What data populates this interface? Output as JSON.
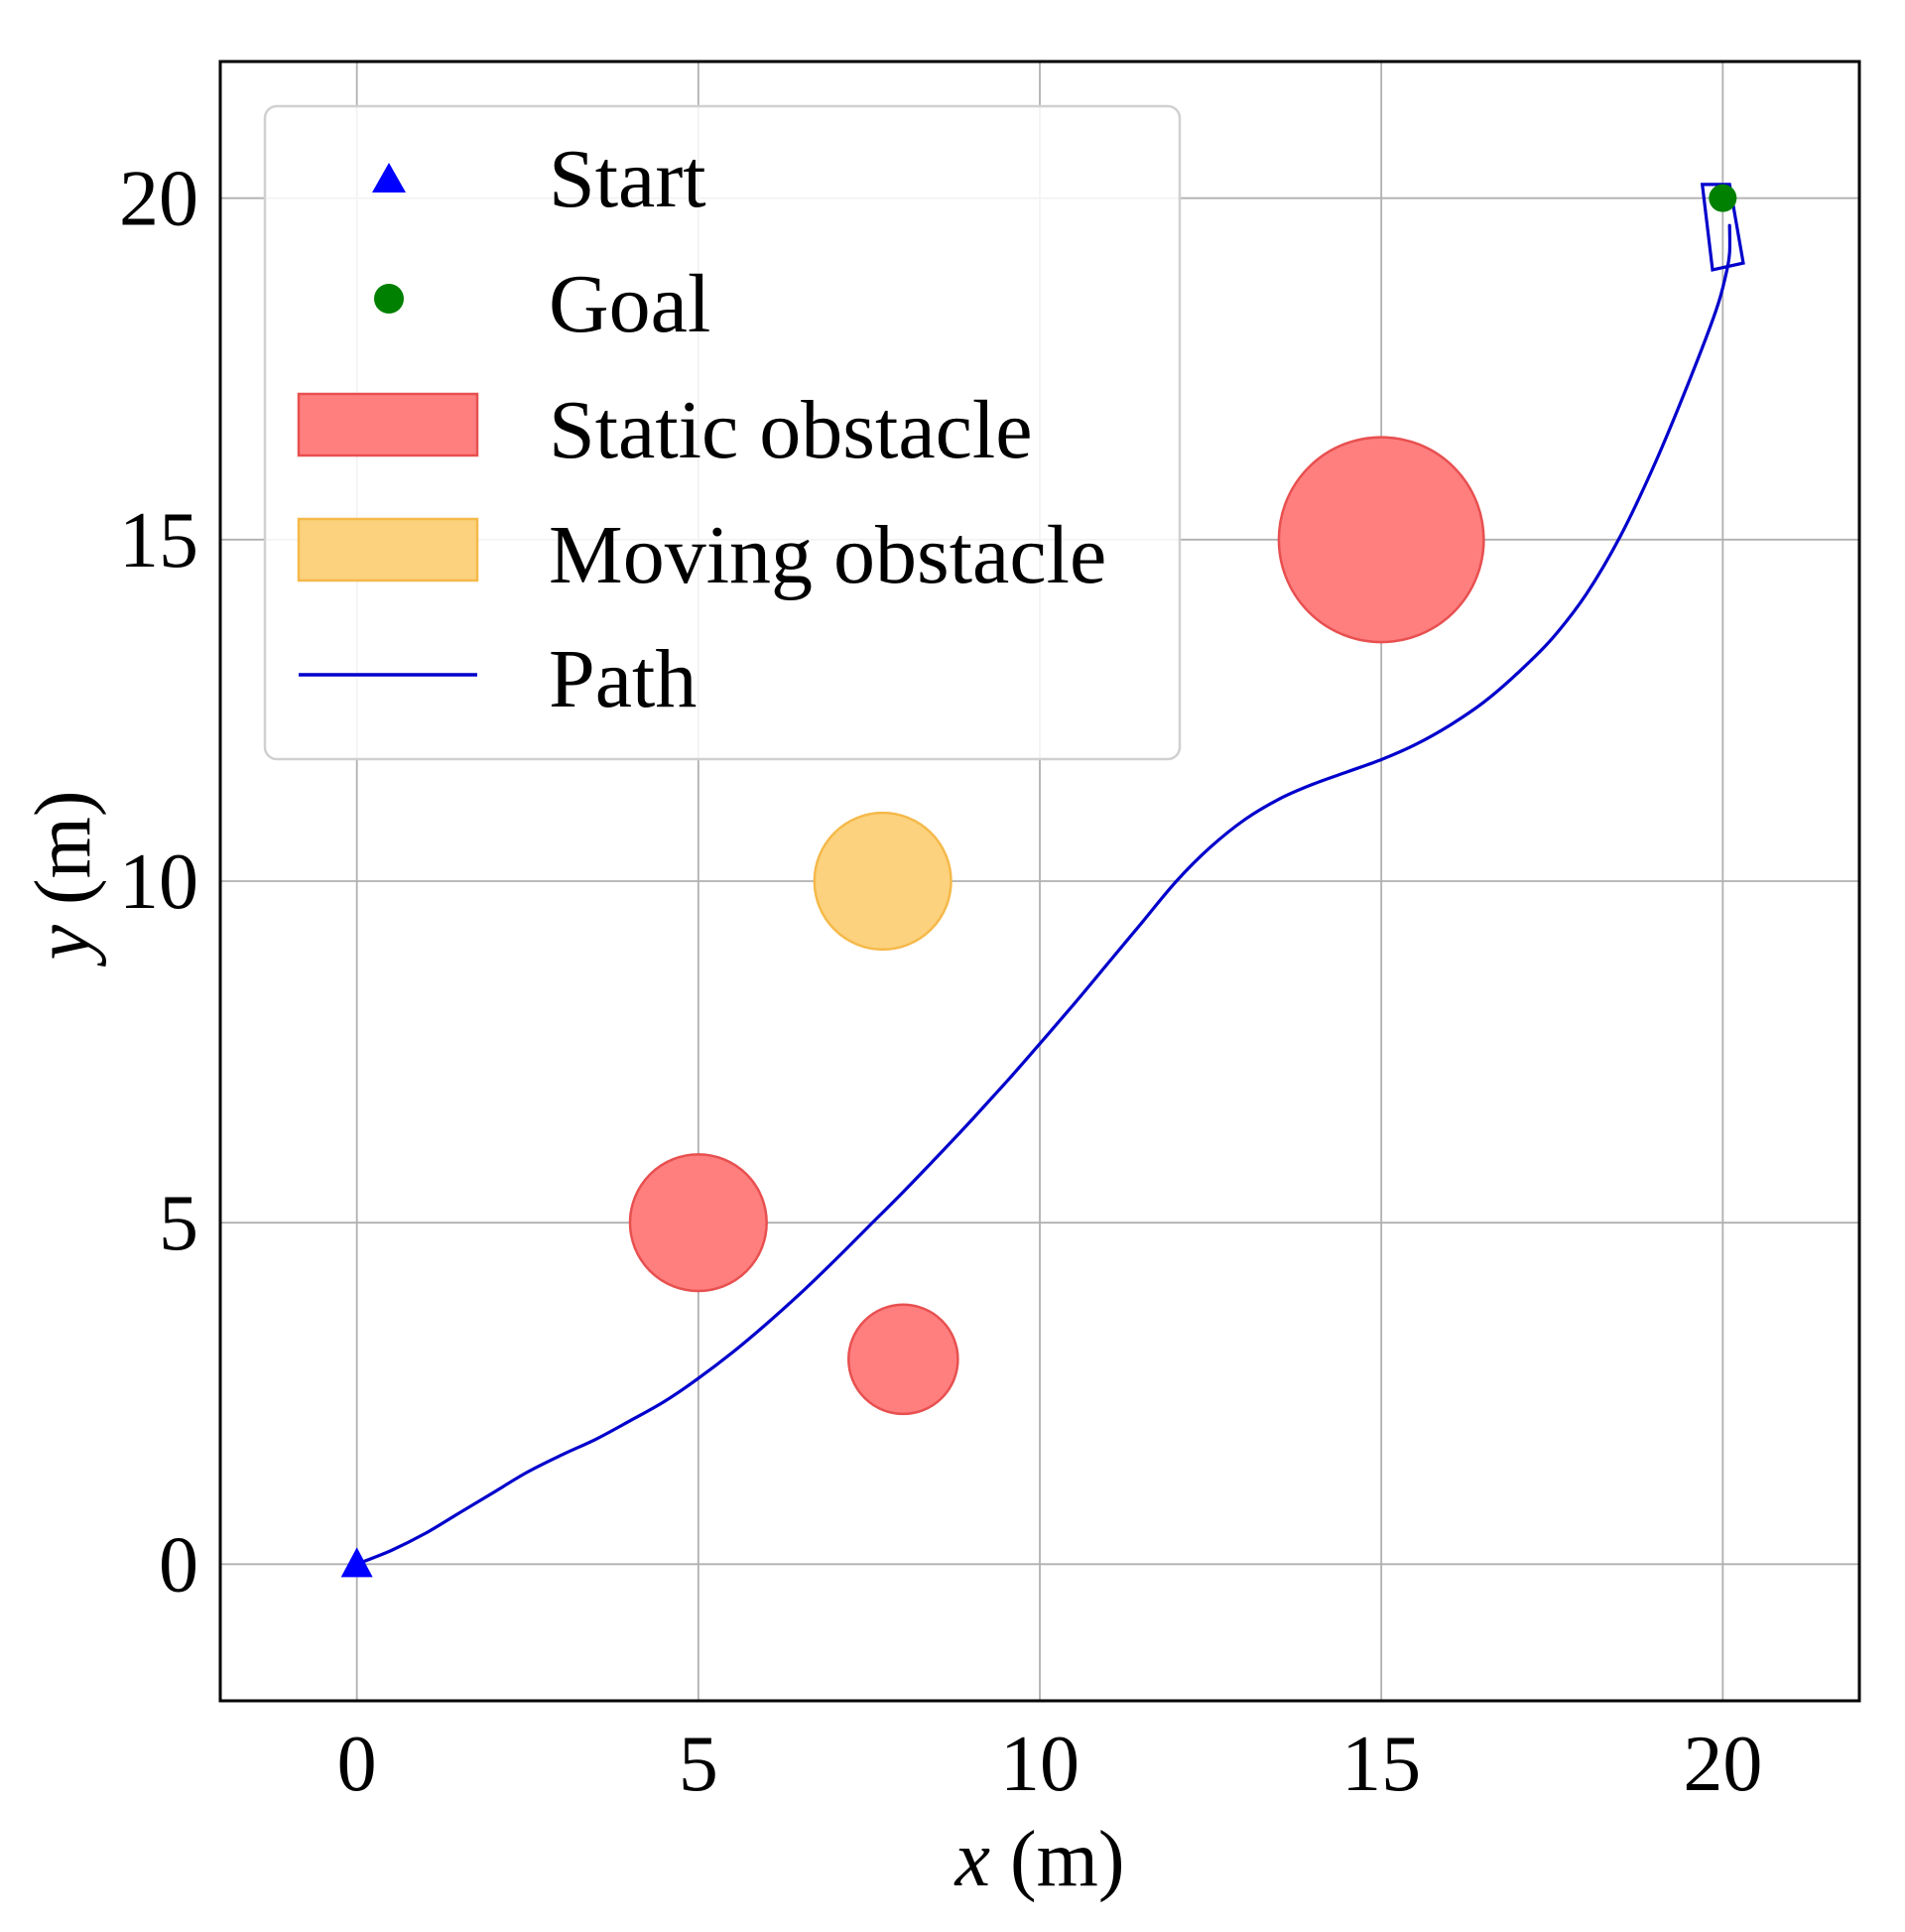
{
  "chart_data": {
    "type": "scatter",
    "title": "",
    "xlabel": {
      "var": "x",
      "unit": " (m)"
    },
    "ylabel": {
      "var": "y",
      "unit": " (m)"
    },
    "xlim": [
      -2,
      22
    ],
    "ylim": [
      -2,
      22
    ],
    "xticks": [
      0,
      5,
      10,
      15,
      20
    ],
    "yticks": [
      0,
      5,
      10,
      15,
      20
    ],
    "xtick_labels": [
      "0",
      "5",
      "10",
      "15",
      "20"
    ],
    "ytick_labels": [
      "0",
      "5",
      "10",
      "15",
      "20"
    ],
    "grid": true,
    "legend_position": "top-left",
    "start": {
      "x": 0,
      "y": 0
    },
    "goal": {
      "x": 20,
      "y": 20
    },
    "static_obstacles": [
      {
        "x": 5,
        "y": 5,
        "r": 1.0
      },
      {
        "x": 8,
        "y": 3,
        "r": 0.8
      },
      {
        "x": 15,
        "y": 15,
        "r": 1.5
      }
    ],
    "moving_obstacles": [
      {
        "x": 7.7,
        "y": 10,
        "r": 1.0
      }
    ],
    "path": [
      [
        0,
        0
      ],
      [
        0.5,
        0.2
      ],
      [
        1.0,
        0.45
      ],
      [
        1.5,
        0.75
      ],
      [
        2.0,
        1.05
      ],
      [
        2.5,
        1.35
      ],
      [
        3.0,
        1.6
      ],
      [
        3.5,
        1.83
      ],
      [
        4.0,
        2.1
      ],
      [
        4.5,
        2.38
      ],
      [
        5.0,
        2.72
      ],
      [
        5.5,
        3.1
      ],
      [
        6.0,
        3.52
      ],
      [
        6.5,
        3.97
      ],
      [
        7.0,
        4.45
      ],
      [
        7.5,
        4.95
      ],
      [
        8.0,
        5.45
      ],
      [
        8.5,
        5.97
      ],
      [
        9.0,
        6.5
      ],
      [
        9.5,
        7.05
      ],
      [
        10.0,
        7.62
      ],
      [
        10.5,
        8.2
      ],
      [
        11.0,
        8.8
      ],
      [
        11.5,
        9.4
      ],
      [
        12.0,
        10.0
      ],
      [
        12.5,
        10.5
      ],
      [
        13.0,
        10.9
      ],
      [
        13.5,
        11.2
      ],
      [
        14.0,
        11.42
      ],
      [
        14.5,
        11.6
      ],
      [
        15.0,
        11.78
      ],
      [
        15.5,
        12.0
      ],
      [
        16.0,
        12.28
      ],
      [
        16.5,
        12.62
      ],
      [
        17.0,
        13.05
      ],
      [
        17.5,
        13.55
      ],
      [
        18.0,
        14.2
      ],
      [
        18.5,
        15.05
      ],
      [
        19.0,
        16.1
      ],
      [
        19.5,
        17.3
      ],
      [
        19.9,
        18.35
      ],
      [
        20.05,
        18.9
      ],
      [
        20.1,
        19.2
      ],
      [
        20.1,
        19.6
      ]
    ],
    "vehicle_box": {
      "corners": [
        [
          19.7,
          20.2
        ],
        [
          20.1,
          20.2
        ],
        [
          20.3,
          19.05
        ],
        [
          19.85,
          18.95
        ]
      ]
    },
    "colors": {
      "start": "#0000ff",
      "goal": "#008000",
      "static_obstacle": "#ff7f7f",
      "static_obstacle_edge": "#e85050",
      "moving_obstacle": "#fcd27e",
      "moving_obstacle_edge": "#f5b94a",
      "path": "#0000cc",
      "grid": "#b0b0b0",
      "axes": "#000000"
    }
  },
  "legend": {
    "items": [
      {
        "label": "Start",
        "marker": "triangle",
        "color": "#0000ff"
      },
      {
        "label": "Goal",
        "marker": "circle",
        "color": "#008000"
      },
      {
        "label": "Static obstacle",
        "marker": "patch",
        "color": "#ff7f7f",
        "edge": "#e85050"
      },
      {
        "label": "Moving obstacle",
        "marker": "patch",
        "color": "#fcd27e",
        "edge": "#f5b94a"
      },
      {
        "label": "Path",
        "marker": "line",
        "color": "#0000cc"
      }
    ]
  }
}
